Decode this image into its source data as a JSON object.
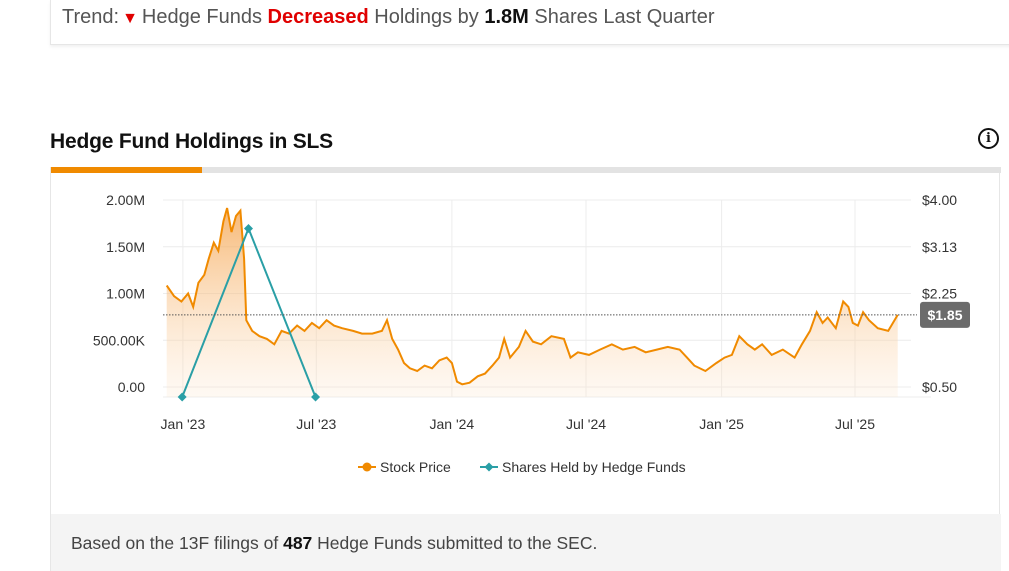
{
  "trend": {
    "prefix": "Trend:",
    "icon": "down-triangle-icon",
    "text_before": "Hedge Funds",
    "direction": "Decreased",
    "text_mid": "Holdings by",
    "amount": "1.8M",
    "text_after": "Shares Last Quarter"
  },
  "section_title": "Hedge Fund Holdings in SLS",
  "info_icon": "i",
  "colors": {
    "stock": "#f08a00",
    "hedge": "#2a9fa6",
    "decrease": "#e00000",
    "tab_active": "#f08a00"
  },
  "chart_data": {
    "type": "line",
    "left_axis": {
      "ticks": [
        "2.00M",
        "1.50M",
        "1.00M",
        "500.00K",
        "0.00"
      ],
      "range": [
        0,
        2000000
      ]
    },
    "right_axis": {
      "ticks": [
        "$4.00",
        "$3.13",
        "$2.25",
        "$1.85",
        "$0.50"
      ],
      "range": [
        0.5,
        4.0
      ]
    },
    "x_ticks": [
      "Jan '23",
      "Jul '23",
      "Jan '24",
      "Jul '24",
      "Jan '25",
      "Jul '25"
    ],
    "x_tick_dates": [
      "2023-01-01",
      "2023-07-01",
      "2024-01-01",
      "2024-07-01",
      "2025-01-01",
      "2025-07-01"
    ],
    "x_range": [
      "2022-12-05",
      "2025-09-15"
    ],
    "current_price": 1.85,
    "current_price_label": "$1.85",
    "legend": [
      {
        "name": "Stock Price",
        "color": "#f08a00",
        "type": "area"
      },
      {
        "name": "Shares Held by Hedge Funds",
        "color": "#2a9fa6",
        "type": "line"
      }
    ],
    "series": [
      {
        "name": "Stock Price",
        "points": [
          [
            "2022-12-10",
            2.4
          ],
          [
            "2022-12-20",
            2.2
          ],
          [
            "2022-12-30",
            2.1
          ],
          [
            "2023-01-08",
            2.25
          ],
          [
            "2023-01-15",
            2.0
          ],
          [
            "2023-01-22",
            2.45
          ],
          [
            "2023-01-30",
            2.6
          ],
          [
            "2023-02-05",
            2.9
          ],
          [
            "2023-02-12",
            3.2
          ],
          [
            "2023-02-18",
            3.05
          ],
          [
            "2023-02-25",
            3.6
          ],
          [
            "2023-03-02",
            3.85
          ],
          [
            "2023-03-08",
            3.4
          ],
          [
            "2023-03-14",
            3.7
          ],
          [
            "2023-03-20",
            3.8
          ],
          [
            "2023-03-25",
            2.9
          ],
          [
            "2023-03-28",
            1.75
          ],
          [
            "2023-04-05",
            1.55
          ],
          [
            "2023-04-15",
            1.45
          ],
          [
            "2023-04-25",
            1.4
          ],
          [
            "2023-05-05",
            1.3
          ],
          [
            "2023-05-15",
            1.55
          ],
          [
            "2023-05-25",
            1.5
          ],
          [
            "2023-06-05",
            1.65
          ],
          [
            "2023-06-15",
            1.55
          ],
          [
            "2023-06-25",
            1.7
          ],
          [
            "2023-07-05",
            1.6
          ],
          [
            "2023-07-15",
            1.75
          ],
          [
            "2023-07-25",
            1.65
          ],
          [
            "2023-08-05",
            1.6
          ],
          [
            "2023-08-20",
            1.55
          ],
          [
            "2023-09-01",
            1.5
          ],
          [
            "2023-09-15",
            1.5
          ],
          [
            "2023-09-28",
            1.55
          ],
          [
            "2023-10-05",
            1.75
          ],
          [
            "2023-10-12",
            1.4
          ],
          [
            "2023-10-20",
            1.2
          ],
          [
            "2023-10-28",
            0.95
          ],
          [
            "2023-11-05",
            0.85
          ],
          [
            "2023-11-15",
            0.8
          ],
          [
            "2023-11-25",
            0.9
          ],
          [
            "2023-12-05",
            0.85
          ],
          [
            "2023-12-15",
            1.0
          ],
          [
            "2023-12-25",
            1.05
          ],
          [
            "2024-01-01",
            0.95
          ],
          [
            "2024-01-08",
            0.6
          ],
          [
            "2024-01-15",
            0.55
          ],
          [
            "2024-01-25",
            0.58
          ],
          [
            "2024-02-05",
            0.7
          ],
          [
            "2024-02-15",
            0.75
          ],
          [
            "2024-02-25",
            0.9
          ],
          [
            "2024-03-05",
            1.05
          ],
          [
            "2024-03-12",
            1.4
          ],
          [
            "2024-03-20",
            1.05
          ],
          [
            "2024-04-01",
            1.25
          ],
          [
            "2024-04-10",
            1.55
          ],
          [
            "2024-04-20",
            1.35
          ],
          [
            "2024-05-01",
            1.3
          ],
          [
            "2024-05-15",
            1.45
          ],
          [
            "2024-06-01",
            1.4
          ],
          [
            "2024-06-10",
            1.05
          ],
          [
            "2024-06-20",
            1.15
          ],
          [
            "2024-07-05",
            1.1
          ],
          [
            "2024-07-20",
            1.2
          ],
          [
            "2024-08-05",
            1.3
          ],
          [
            "2024-08-20",
            1.2
          ],
          [
            "2024-09-05",
            1.25
          ],
          [
            "2024-09-20",
            1.15
          ],
          [
            "2024-10-05",
            1.2
          ],
          [
            "2024-10-20",
            1.25
          ],
          [
            "2024-11-05",
            1.2
          ],
          [
            "2024-11-15",
            1.05
          ],
          [
            "2024-11-25",
            0.9
          ],
          [
            "2024-12-10",
            0.8
          ],
          [
            "2024-12-25",
            0.95
          ],
          [
            "2025-01-05",
            1.05
          ],
          [
            "2025-01-15",
            1.1
          ],
          [
            "2025-01-25",
            1.45
          ],
          [
            "2025-02-05",
            1.3
          ],
          [
            "2025-02-15",
            1.2
          ],
          [
            "2025-02-25",
            1.3
          ],
          [
            "2025-03-10",
            1.1
          ],
          [
            "2025-03-25",
            1.2
          ],
          [
            "2025-04-10",
            1.05
          ],
          [
            "2025-04-20",
            1.3
          ],
          [
            "2025-05-01",
            1.55
          ],
          [
            "2025-05-10",
            1.9
          ],
          [
            "2025-05-18",
            1.7
          ],
          [
            "2025-05-25",
            1.8
          ],
          [
            "2025-06-05",
            1.6
          ],
          [
            "2025-06-15",
            2.1
          ],
          [
            "2025-06-22",
            2.0
          ],
          [
            "2025-06-28",
            1.7
          ],
          [
            "2025-07-05",
            1.65
          ],
          [
            "2025-07-12",
            1.9
          ],
          [
            "2025-07-20",
            1.75
          ],
          [
            "2025-08-01",
            1.6
          ],
          [
            "2025-08-15",
            1.55
          ],
          [
            "2025-08-28",
            1.85
          ]
        ]
      },
      {
        "name": "Shares Held by Hedge Funds",
        "points": [
          [
            "2022-12-31",
            0
          ],
          [
            "2023-03-31",
            1695000
          ],
          [
            "2023-06-30",
            0
          ]
        ]
      }
    ]
  },
  "footer": {
    "prefix": "Based on the 13F filings of",
    "count": "487",
    "suffix": "Hedge Funds submitted to the SEC."
  }
}
